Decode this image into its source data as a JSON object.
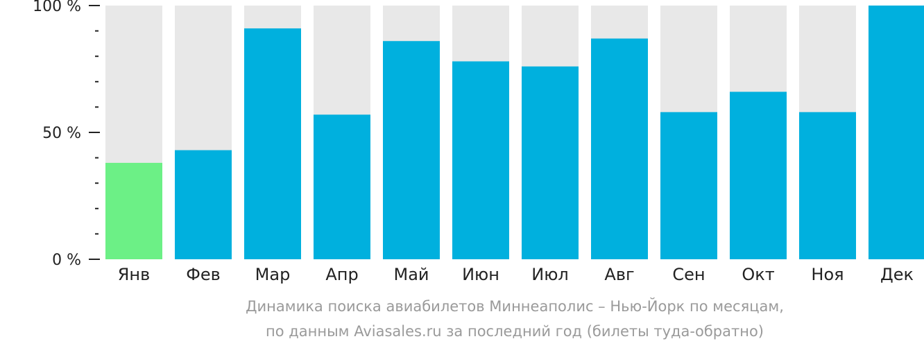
{
  "chart_data": {
    "type": "bar",
    "categories": [
      "Янв",
      "Фев",
      "Мар",
      "Апр",
      "Май",
      "Июн",
      "Июл",
      "Авг",
      "Сен",
      "Окт",
      "Ноя",
      "Дек"
    ],
    "values": [
      38,
      43,
      91,
      57,
      86,
      78,
      76,
      87,
      58,
      66,
      58,
      100
    ],
    "ylim": [
      0,
      100
    ],
    "yticks": [
      {
        "value": 0,
        "label": "0 %"
      },
      {
        "value": 50,
        "label": "50 %"
      },
      {
        "value": 100,
        "label": "100 %"
      }
    ],
    "minor_ticks": [
      10,
      20,
      30,
      40,
      60,
      70,
      80,
      90
    ],
    "highlight_index": 0,
    "colors": {
      "bar": "#00b0de",
      "highlight": "#6cf086",
      "background_bar": "#e8e8e8",
      "axis": "#222222"
    },
    "caption": [
      "Динамика поиска авиабилетов Миннеаполис – Нью-Йорк по месяцам,",
      "по данным Aviasales.ru за последний год (билеты туда-обратно)"
    ]
  }
}
